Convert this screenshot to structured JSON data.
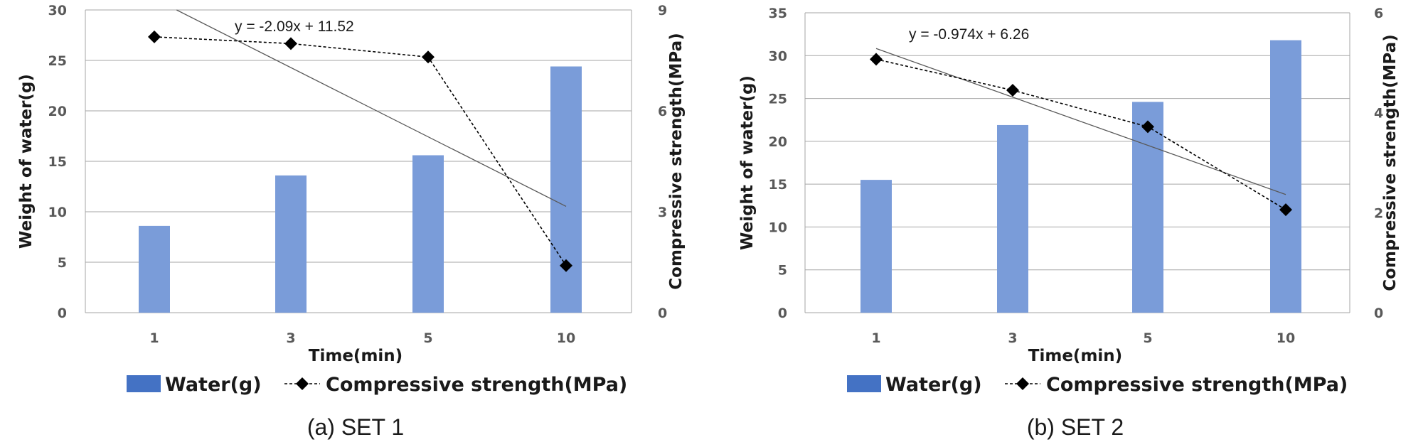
{
  "chart_data": [
    {
      "type": "bar",
      "categories": [
        "1",
        "3",
        "5",
        "10"
      ],
      "series": [
        {
          "name": "Water(g)",
          "axis": "left",
          "type": "bar",
          "values": [
            8.6,
            13.6,
            15.6,
            24.4
          ]
        },
        {
          "name": "Compressive strength(MPa)",
          "axis": "right",
          "type": "line",
          "style": "dashed",
          "marker": "diamond",
          "values": [
            8.2,
            8.0,
            7.6,
            1.4
          ]
        }
      ],
      "trendline": {
        "of": "Compressive strength(MPa)",
        "slope": -2.09,
        "intercept": 11.52,
        "equation": "y = -2.09x + 11.52"
      },
      "xlabel": "Time(min)",
      "ylabel": "Weight of water(g)",
      "y2label": "Compressive strength(MPa)",
      "ylim": [
        0,
        30
      ],
      "yticks": [
        0,
        5,
        10,
        15,
        20,
        25,
        30
      ],
      "y2lim": [
        0,
        9
      ],
      "y2ticks": [
        0,
        3,
        6,
        9
      ],
      "grid": true,
      "legend": "bottom",
      "caption": "(a)  SET  1"
    },
    {
      "type": "bar",
      "categories": [
        "1",
        "3",
        "5",
        "10"
      ],
      "series": [
        {
          "name": "Water(g)",
          "axis": "left",
          "type": "bar",
          "values": [
            15.5,
            21.9,
            24.6,
            31.8
          ]
        },
        {
          "name": "Compressive strength(MPa)",
          "axis": "right",
          "type": "line",
          "style": "dashed",
          "marker": "diamond",
          "values": [
            5.07,
            4.45,
            3.72,
            2.06
          ]
        }
      ],
      "trendline": {
        "of": "Compressive strength(MPa)",
        "slope": -0.974,
        "intercept": 6.26,
        "equation": "y = -0.974x + 6.26"
      },
      "xlabel": "Time(min)",
      "ylabel": "Weight of water(g)",
      "y2label": "Compressive strength(MPa)",
      "ylim": [
        0,
        35
      ],
      "yticks": [
        0,
        5,
        10,
        15,
        20,
        25,
        30,
        35
      ],
      "y2lim": [
        0,
        6
      ],
      "y2ticks": [
        0,
        2,
        4,
        6
      ],
      "grid": true,
      "legend": "bottom",
      "caption": "(b)  SET  2"
    }
  ],
  "colors": {
    "bar": "#7a9cd9",
    "legend_bar": "#4472c4",
    "grid": "#a6a6a6",
    "line": "#000000",
    "trendline": "#595959"
  }
}
